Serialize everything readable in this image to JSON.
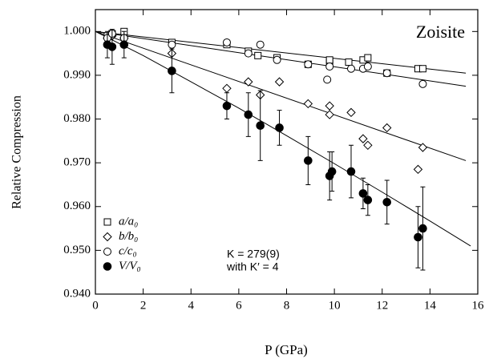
{
  "chart_data": {
    "type": "scatter",
    "title": "Zoisite",
    "x_label": "P (GPa)",
    "y_label": "Relative Compression",
    "xlim": [
      0,
      16
    ],
    "ylim": [
      0.94,
      1.005
    ],
    "xticks": [
      0,
      2,
      4,
      6,
      8,
      10,
      12,
      14,
      16
    ],
    "yticks": [
      {
        "value": 0.94,
        "label": "0.940"
      },
      {
        "value": 0.95,
        "label": "0.950"
      },
      {
        "value": 0.96,
        "label": "0.960"
      },
      {
        "value": 0.97,
        "label": "0.970"
      },
      {
        "value": 0.98,
        "label": "0.980"
      },
      {
        "value": 0.99,
        "label": "0.990"
      },
      {
        "value": 1.0,
        "label": "1.000"
      }
    ],
    "legend": "lower left",
    "annotations": [
      "K = 279(9)",
      "with K′ = 4"
    ],
    "series": [
      {
        "name": "a/a₀",
        "marker": "square",
        "color": "#000000",
        "x": [
          0.5,
          0.7,
          1.2,
          3.2,
          5.5,
          6.4,
          6.8,
          7.6,
          8.9,
          9.8,
          9.8,
          10.6,
          11.2,
          11.4,
          12.2,
          13.5,
          13.7
        ],
        "values": [
          0.999,
          0.9995,
          1.0,
          0.9975,
          0.997,
          0.9955,
          0.9945,
          0.994,
          0.9925,
          0.993,
          0.9935,
          0.993,
          0.9935,
          0.994,
          0.9905,
          0.9915,
          0.9915
        ]
      },
      {
        "name": "b/b₀",
        "marker": "diamond",
        "color": "#000000",
        "x": [
          0.5,
          0.7,
          1.2,
          3.2,
          5.5,
          6.4,
          6.9,
          7.7,
          8.9,
          9.8,
          9.8,
          10.7,
          11.2,
          11.4,
          12.2,
          13.5,
          13.7
        ],
        "values": [
          0.9985,
          0.999,
          0.9985,
          0.995,
          0.987,
          0.9885,
          0.9855,
          0.9885,
          0.9835,
          0.983,
          0.981,
          0.9815,
          0.9755,
          0.974,
          0.978,
          0.9685,
          0.9735
        ]
      },
      {
        "name": "c/c₀",
        "marker": "circle",
        "color": "#000000",
        "x": [
          0.5,
          0.7,
          1.2,
          3.2,
          5.5,
          6.4,
          6.9,
          7.6,
          8.9,
          9.7,
          9.8,
          10.7,
          11.2,
          11.4,
          12.2,
          13.7
        ],
        "values": [
          0.9985,
          0.9995,
          0.9985,
          0.997,
          0.9975,
          0.995,
          0.997,
          0.9935,
          0.9925,
          0.989,
          0.992,
          0.9915,
          0.9915,
          0.992,
          0.9905,
          0.988
        ]
      },
      {
        "name": "V/V₀",
        "marker": "filled-circle",
        "color": "#000000",
        "x": [
          0.5,
          0.7,
          1.2,
          3.2,
          5.5,
          6.4,
          6.9,
          7.7,
          8.9,
          9.8,
          9.9,
          10.7,
          11.2,
          11.4,
          12.2,
          13.5,
          13.7
        ],
        "values": [
          0.997,
          0.9965,
          0.997,
          0.991,
          0.983,
          0.981,
          0.9785,
          0.978,
          0.9705,
          0.967,
          0.968,
          0.968,
          0.963,
          0.9615,
          0.961,
          0.953,
          0.955
        ],
        "errors": [
          0.003,
          0.004,
          0.003,
          0.005,
          0.003,
          0.005,
          0.008,
          0.004,
          0.0055,
          0.0055,
          0.0045,
          0.006,
          0.0035,
          0.0035,
          0.005,
          0.007,
          0.0095
        ]
      }
    ],
    "fits": [
      {
        "x": [
          0,
          15.5
        ],
        "values": [
          1.0,
          0.9905
        ]
      },
      {
        "x": [
          0,
          15.5
        ],
        "values": [
          1.0,
          0.9705
        ]
      },
      {
        "x": [
          0,
          15.5
        ],
        "values": [
          1.0,
          0.9875
        ]
      },
      {
        "x": [
          0,
          2,
          4,
          6,
          8,
          10,
          12,
          14,
          15.7
        ],
        "values": [
          1.0,
          0.9945,
          0.9885,
          0.9825,
          0.9762,
          0.9698,
          0.9633,
          0.9567,
          0.951
        ]
      }
    ]
  }
}
